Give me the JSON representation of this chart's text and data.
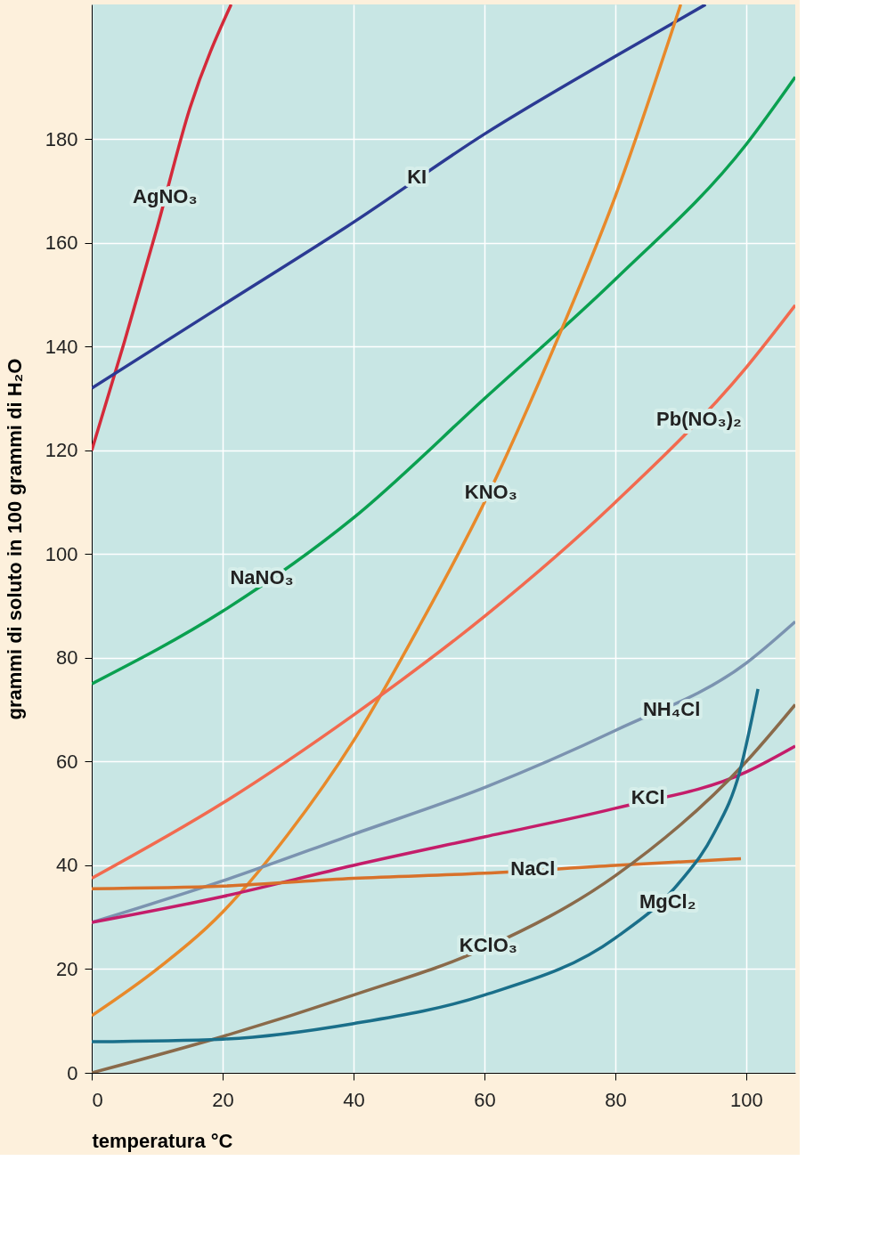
{
  "chart_data": {
    "type": "line",
    "xlabel": "temperatura °C",
    "ylabel": "grammi di soluto in 100 grammi di H₂O",
    "xlim": [
      0,
      107.5
    ],
    "ylim": [
      0,
      206
    ],
    "xticks": [
      0,
      20,
      40,
      60,
      80,
      100
    ],
    "yticks": [
      0,
      20,
      40,
      60,
      80,
      100,
      120,
      140,
      160,
      180
    ],
    "grid": true,
    "legend": false,
    "marker": "none",
    "line_style": "solid",
    "series": [
      {
        "color": "#d42a3a",
        "x": [
          0,
          5,
          10,
          15,
          21.3
        ],
        "values": [
          120,
          141,
          163,
          186,
          206
        ]
      },
      {
        "color": "#2b3a93",
        "x": [
          0,
          20,
          40,
          60,
          80,
          93.8
        ],
        "values": [
          132,
          148,
          164,
          181,
          196,
          206
        ]
      },
      {
        "color": "#0aa050",
        "x": [
          0,
          20,
          40,
          60,
          80,
          100,
          107.5
        ],
        "values": [
          75,
          89,
          107,
          130,
          153,
          179,
          192
        ]
      },
      {
        "color": "#e8892a",
        "x": [
          0,
          10,
          20,
          30,
          40,
          50,
          60,
          70,
          80,
          90
        ],
        "values": [
          11,
          20,
          31,
          46,
          64,
          86,
          110,
          138,
          169,
          206
        ]
      },
      {
        "color": "#f26a4f",
        "x": [
          0,
          20,
          40,
          60,
          80,
          100,
          107.5
        ],
        "values": [
          37.5,
          52,
          69,
          88,
          110,
          136,
          148
        ]
      },
      {
        "color": "#7b93b0",
        "x": [
          0,
          20,
          40,
          60,
          80,
          100,
          107.5
        ],
        "values": [
          29,
          37,
          46,
          55,
          66,
          79,
          87
        ]
      },
      {
        "color": "#c41d6a",
        "x": [
          0,
          20,
          40,
          60,
          80,
          100,
          107.5
        ],
        "values": [
          29,
          34,
          40,
          45.5,
          51,
          58,
          63
        ]
      },
      {
        "color": "#d8712a",
        "x": [
          0,
          20,
          40,
          60,
          80,
          99.2
        ],
        "values": [
          35.5,
          36,
          37.5,
          38.5,
          40,
          41.3
        ]
      },
      {
        "color": "#8a6a4a",
        "x": [
          0,
          20,
          40,
          60,
          80,
          100,
          107.5
        ],
        "values": [
          0,
          7,
          15,
          24,
          38,
          60,
          71
        ]
      },
      {
        "color": "#1a6f8a",
        "x": [
          0,
          20,
          40,
          60,
          80,
          90,
          95,
          99,
          101.8
        ],
        "values": [
          6,
          6.5,
          9.5,
          15,
          26,
          37,
          46,
          58,
          74
        ]
      }
    ],
    "annotations": [
      {
        "text": "AgNO₃",
        "x": 11.2,
        "y": 169
      },
      {
        "text": "KI",
        "x": 49.7,
        "y": 172.7
      },
      {
        "text": "NaNO₃",
        "x": 26,
        "y": 95.4
      },
      {
        "text": "KNO₃",
        "x": 61,
        "y": 112
      },
      {
        "text": "Pb(NO₃)₂",
        "x": 92.8,
        "y": 126
      },
      {
        "text": "NH₄Cl",
        "x": 88.6,
        "y": 70
      },
      {
        "text": "KCl",
        "x": 85,
        "y": 53
      },
      {
        "text": "NaCl",
        "x": 67.4,
        "y": 39.3
      },
      {
        "text": "MgCl₂",
        "x": 88,
        "y": 33
      },
      {
        "text": "KClO₃",
        "x": 60.6,
        "y": 24.5
      }
    ]
  }
}
